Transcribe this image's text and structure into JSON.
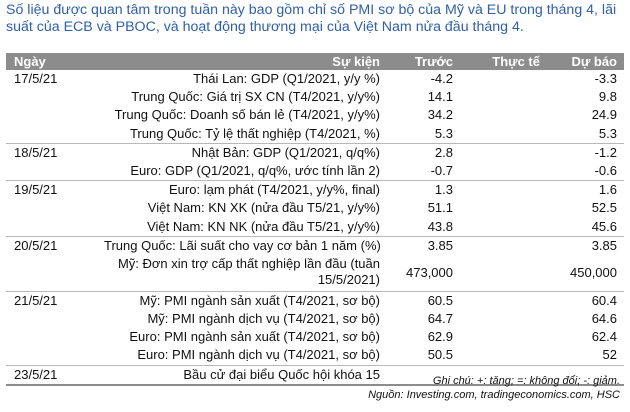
{
  "title": "Số liệu được quan tâm trong tuần này bao gồm chỉ số PMI sơ bộ của Mỹ và EU trong tháng 4, lãi suất của ECB và PBOC, và hoạt động thương mại của Việt Nam nửa đầu tháng 4.",
  "columns": {
    "date": "Ngày",
    "event": "Sự kiện",
    "previous": "Trước",
    "actual": "Thực tế",
    "forecast": "Dự báo"
  },
  "rows": [
    {
      "date": "17/5/21",
      "event": "Thái Lan: GDP (Q1/2021, y/y %)",
      "previous": "-4.2",
      "actual": "",
      "forecast": "-3.3"
    },
    {
      "date": "",
      "event": "Trung Quốc: Giá trị SX CN (T4/2021, y/y%)",
      "previous": "14.1",
      "actual": "",
      "forecast": "9.8"
    },
    {
      "date": "",
      "event": "Trung Quốc: Doanh số bán lẻ (T4/2021, y/y%)",
      "previous": "34.2",
      "actual": "",
      "forecast": "24.9"
    },
    {
      "date": "",
      "event": "Trung Quốc: Tỷ lệ thất nghiệp (T4/2021, %)",
      "previous": "5.3",
      "actual": "",
      "forecast": "5.3"
    },
    {
      "date": "18/5/21",
      "event": "Nhật Bản: GDP (Q1/2021, q/q%)",
      "previous": "2.8",
      "actual": "",
      "forecast": "-1.2"
    },
    {
      "date": "",
      "event": "Euro: GDP (Q1/2021, q/q%, ước tính lần 2)",
      "previous": "-0.7",
      "actual": "",
      "forecast": "-0.6"
    },
    {
      "date": "19/5/21",
      "event": "Euro: lạm phát (T4/2021, y/y%, final)",
      "previous": "1.3",
      "actual": "",
      "forecast": "1.6"
    },
    {
      "date": "",
      "event": "Việt Nam: KN XK (nửa đầu T5/21, y/y%)",
      "previous": "51.1",
      "actual": "",
      "forecast": "52.5"
    },
    {
      "date": "",
      "event": "Việt Nam: KN NK (nửa đầu T5/21, y/y%)",
      "previous": "43.8",
      "actual": "",
      "forecast": "45.6"
    },
    {
      "date": "20/5/21",
      "event": "Trung Quốc: Lãi suất cho vay cơ bản 1 năm (%)",
      "previous": "3.85",
      "actual": "",
      "forecast": "3.85"
    },
    {
      "date": "",
      "event": "Mỹ: Đơn xin trợ cấp thất nghiệp lần đầu (tuần 15/5/2021)",
      "previous": "473,000",
      "actual": "",
      "forecast": "450,000"
    },
    {
      "date": "21/5/21",
      "event": "Mỹ: PMI ngành sản xuất (T4/2021, sơ bộ)",
      "previous": "60.5",
      "actual": "",
      "forecast": "60.4"
    },
    {
      "date": "",
      "event": "Mỹ: PMI ngành dịch vụ (T4/2021, sơ bộ)",
      "previous": "64.7",
      "actual": "",
      "forecast": "64.6"
    },
    {
      "date": "",
      "event": "Euro: PMI ngành sản xuất (T4/2021, sơ bộ)",
      "previous": "62.9",
      "actual": "",
      "forecast": "62.4"
    },
    {
      "date": "",
      "event": "Euro: PMI ngành dịch vụ (T4/2021, sơ bộ)",
      "previous": "50.5",
      "actual": "",
      "forecast": "52"
    },
    {
      "date": "23/5/21",
      "event": "Bầu cử đại biểu Quốc hội khóa 15",
      "previous": "",
      "actual": "",
      "forecast": ""
    }
  ],
  "notes": {
    "legend": "Ghi chú: +: tăng; =: không đổi; -: giảm.",
    "source": "Nguồn: Investing.com, tradingeconomics.com, HSC"
  }
}
